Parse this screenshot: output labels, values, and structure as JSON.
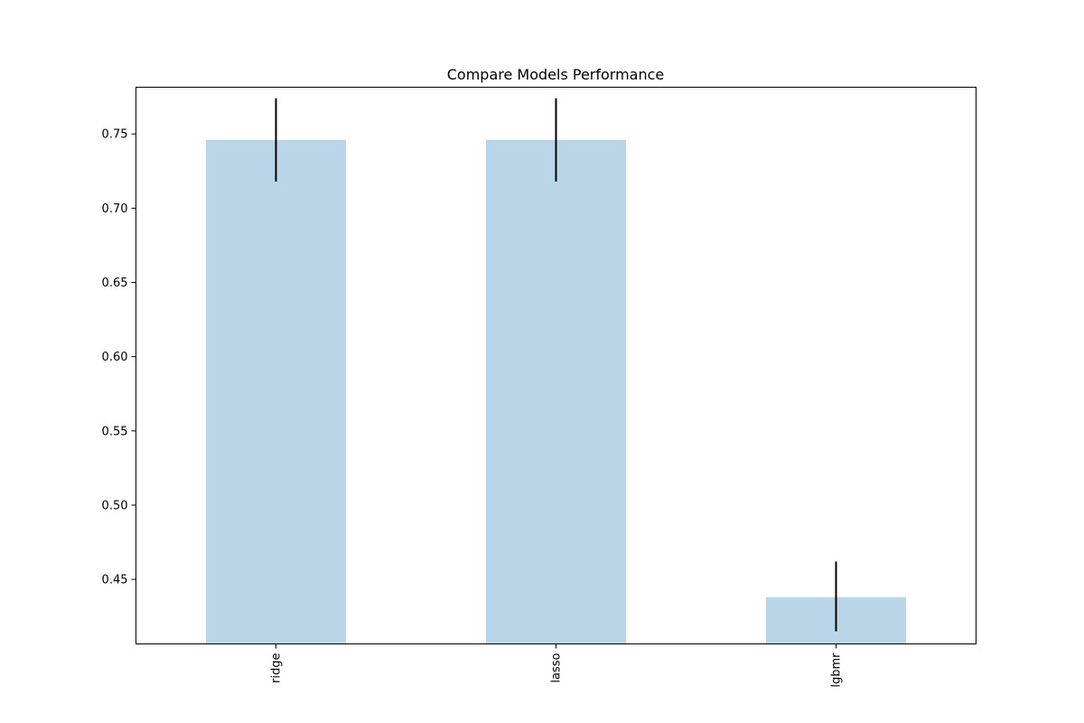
{
  "chart_data": {
    "type": "bar",
    "title": "Compare Models Performance",
    "xlabel": "",
    "ylabel": "",
    "categories": [
      "ridge",
      "lasso",
      "lgbmr"
    ],
    "values": [
      0.746,
      0.746,
      0.438
    ],
    "error_low": [
      0.718,
      0.718,
      0.415
    ],
    "error_high": [
      0.774,
      0.774,
      0.462
    ],
    "ylim": [
      0.4065,
      0.7815
    ],
    "yticks": [
      0.45,
      0.5,
      0.55,
      0.6,
      0.65,
      0.7,
      0.75
    ],
    "ytick_labels": [
      "0.45",
      "0.50",
      "0.55",
      "0.60",
      "0.65",
      "0.70",
      "0.75"
    ],
    "grid": false,
    "bar_color": "#bad5e8",
    "errorbar_color": "#000000"
  }
}
